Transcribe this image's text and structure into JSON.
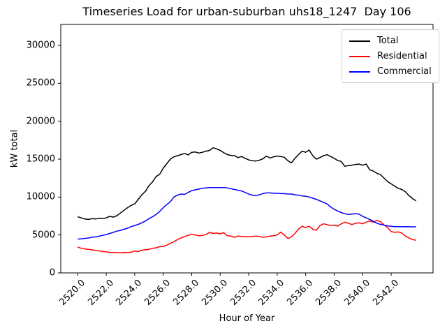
{
  "chart_data": {
    "type": "line",
    "title": "Timeseries Load for urban-suburban uhs18_1247  Day 106",
    "xlabel": "Hour of Year",
    "ylabel": "kW total",
    "grid": false,
    "legend_position": "upper right",
    "xlim": [
      2518.81,
      2544.94
    ],
    "ylim": [
      0,
      32760
    ],
    "x_tick_values": [
      2520,
      2522,
      2524,
      2526,
      2528,
      2530,
      2532,
      2534,
      2536,
      2538,
      2540,
      2542
    ],
    "x_tick_labels": [
      "2520.0",
      "2522.0",
      "2524.0",
      "2526.0",
      "2528.0",
      "2530.0",
      "2532.0",
      "2534.0",
      "2536.0",
      "2538.0",
      "2540.0",
      "2542.0"
    ],
    "y_tick_values": [
      0,
      5000,
      10000,
      15000,
      20000,
      25000,
      30000
    ],
    "y_tick_labels": [
      "0",
      "5000",
      "10000",
      "15000",
      "20000",
      "25000",
      "30000"
    ],
    "x_start": 2520.0,
    "x_step": 0.25,
    "series": [
      {
        "name": "Total",
        "color": "#000000",
        "values": [
          7400,
          7250,
          7100,
          7050,
          7150,
          7100,
          7200,
          7150,
          7250,
          7450,
          7350,
          7550,
          7900,
          8250,
          8600,
          8900,
          9100,
          9700,
          10300,
          10750,
          11500,
          12000,
          12700,
          13000,
          13800,
          14400,
          15000,
          15300,
          15450,
          15600,
          15750,
          15550,
          15900,
          15950,
          15800,
          15900,
          16050,
          16150,
          16500,
          16350,
          16150,
          15850,
          15600,
          15500,
          15450,
          15200,
          15350,
          15100,
          14900,
          14800,
          14750,
          14850,
          15050,
          15400,
          15150,
          15300,
          15400,
          15350,
          15250,
          14800,
          14500,
          15100,
          15600,
          16050,
          15900,
          16200,
          15450,
          15000,
          15200,
          15450,
          15580,
          15350,
          15120,
          14815,
          14700,
          14050,
          14150,
          14200,
          14300,
          14350,
          14200,
          14350,
          13590,
          13430,
          13130,
          12970,
          12510,
          12050,
          11740,
          11440,
          11150,
          11000,
          10700,
          10200,
          9800,
          9500
        ]
      },
      {
        "name": "Residential",
        "color": "#ff0000",
        "values": [
          3400,
          3250,
          3150,
          3100,
          3050,
          2950,
          2900,
          2820,
          2780,
          2700,
          2700,
          2680,
          2650,
          2700,
          2680,
          2720,
          2900,
          2800,
          3000,
          3050,
          3100,
          3250,
          3300,
          3450,
          3500,
          3650,
          3900,
          4100,
          4400,
          4600,
          4800,
          4950,
          5100,
          5000,
          4900,
          4950,
          5050,
          5350,
          5200,
          5250,
          5150,
          5300,
          4900,
          4850,
          4700,
          4850,
          4800,
          4780,
          4760,
          4800,
          4850,
          4800,
          4700,
          4750,
          4850,
          4900,
          5000,
          5370,
          5000,
          4540,
          4760,
          5200,
          5770,
          6150,
          5980,
          6150,
          5770,
          5610,
          6230,
          6470,
          6380,
          6230,
          6290,
          6165,
          6470,
          6690,
          6540,
          6380,
          6540,
          6600,
          6470,
          6690,
          6840,
          6690,
          6900,
          6780,
          6300,
          5980,
          5460,
          5350,
          5400,
          5250,
          4850,
          4600,
          4400,
          4300
        ]
      },
      {
        "name": "Commercial",
        "color": "#0000ff",
        "values": [
          4450,
          4500,
          4550,
          4600,
          4700,
          4750,
          4850,
          4950,
          5050,
          5200,
          5350,
          5500,
          5600,
          5750,
          5900,
          6100,
          6250,
          6400,
          6600,
          6850,
          7150,
          7400,
          7700,
          8100,
          8600,
          9000,
          9400,
          10000,
          10250,
          10400,
          10350,
          10600,
          10850,
          10950,
          11050,
          11150,
          11200,
          11250,
          11250,
          11250,
          11250,
          11250,
          11200,
          11100,
          11000,
          10900,
          10800,
          10600,
          10400,
          10250,
          10200,
          10300,
          10450,
          10550,
          10550,
          10500,
          10500,
          10450,
          10450,
          10400,
          10400,
          10300,
          10250,
          10150,
          10100,
          10000,
          9850,
          9700,
          9500,
          9300,
          9100,
          8700,
          8400,
          8150,
          7950,
          7800,
          7700,
          7750,
          7800,
          7750,
          7450,
          7250,
          7050,
          6800,
          6550,
          6400,
          6300,
          6200,
          6150,
          6100,
          6100,
          6080,
          6100,
          6080,
          6060,
          6080
        ]
      }
    ]
  }
}
